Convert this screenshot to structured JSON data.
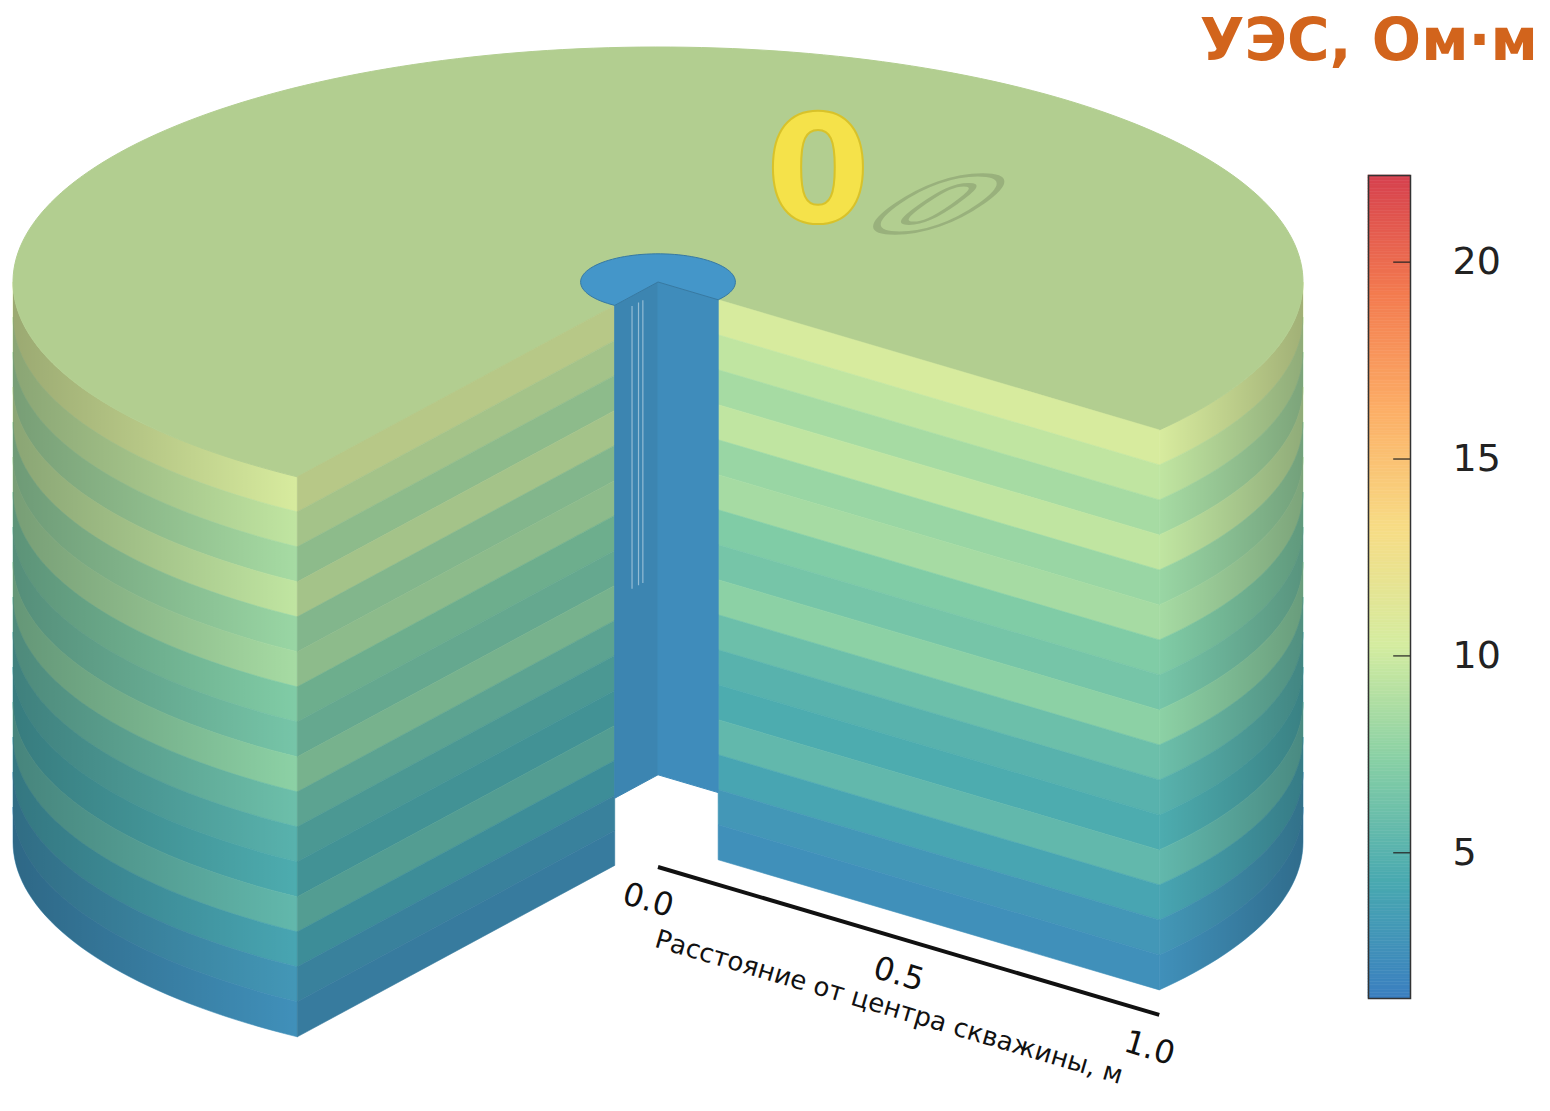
{
  "chart_data": {
    "type": "borehole_model",
    "title": "УЭС, Ом·м",
    "annotation": "0",
    "x_label": "Расстояние от центра скважины, м",
    "xlim": [
      0,
      1
    ],
    "xticks": [
      {
        "value": 0,
        "label": "0.0"
      },
      {
        "value": 0.5,
        "label": "0.5"
      },
      {
        "value": 1,
        "label": "1.0"
      }
    ],
    "layer_resistivity": [
      10.5,
      9.5,
      8.5,
      9.5,
      8,
      8.5,
      7,
      6.5,
      7.5,
      6,
      5,
      4.5,
      5.5,
      4,
      3,
      2.5
    ],
    "borehole": {
      "radius": 0.12,
      "resistivity": 2.2
    },
    "colorbar": {
      "range": [
        1.3,
        22.2
      ],
      "ticks": [
        5,
        10,
        15,
        20
      ]
    }
  }
}
